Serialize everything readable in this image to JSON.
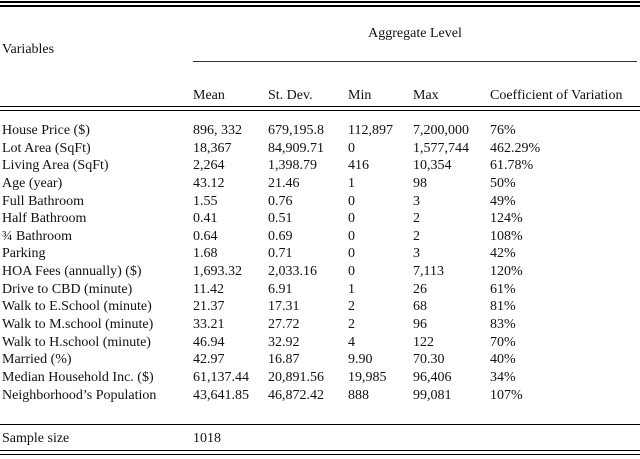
{
  "table": {
    "variables_header": "Variables",
    "group_header": "Aggregate Level",
    "columns": {
      "mean": "Mean",
      "std": "St. Dev.",
      "min": "Min",
      "max": "Max",
      "cov": "Coefficient of Variation"
    },
    "rows": [
      {
        "label": "House Price ($)",
        "mean": "896, 332",
        "std": "679,195.8",
        "min": "112,897",
        "max": "7,200,000",
        "cov": "76%"
      },
      {
        "label": "Lot Area (SqFt)",
        "mean": "18,367",
        "std": "84,909.71",
        "min": "0",
        "max": "1,577,744",
        "cov": "462.29%"
      },
      {
        "label": "Living Area (SqFt)",
        "mean": "2,264",
        "std": "1,398.79",
        "min": "416",
        "max": "10,354",
        "cov": "61.78%"
      },
      {
        "label": "Age (year)",
        "mean": "43.12",
        "std": "21.46",
        "min": "1",
        "max": "98",
        "cov": "50%"
      },
      {
        "label": "Full Bathroom",
        "mean": "1.55",
        "std": "0.76",
        "min": "0",
        "max": "3",
        "cov": "49%"
      },
      {
        "label": "Half Bathroom",
        "mean": "0.41",
        "std": "0.51",
        "min": "0",
        "max": "2",
        "cov": "124%"
      },
      {
        "label": "¾ Bathroom",
        "mean": "0.64",
        "std": "0.69",
        "min": "0",
        "max": "2",
        "cov": "108%"
      },
      {
        "label": "Parking",
        "mean": "1.68",
        "std": "0.71",
        "min": "0",
        "max": "3",
        "cov": "42%"
      },
      {
        "label": "HOA Fees (annually) ($)",
        "mean": "1,693.32",
        "std": "2,033.16",
        "min": "0",
        "max": "7,113",
        "cov": "120%"
      },
      {
        "label": "Drive to CBD (minute)",
        "mean": "11.42",
        "std": "6.91",
        "min": "1",
        "max": "26",
        "cov": "61%"
      },
      {
        "label": "Walk to E.School (minute)",
        "mean": "21.37",
        "std": "17.31",
        "min": "2",
        "max": "68",
        "cov": "81%"
      },
      {
        "label": "Walk to M.school (minute)",
        "mean": "33.21",
        "std": "27.72",
        "min": "2",
        "max": "96",
        "cov": "83%"
      },
      {
        "label": "Walk to H.school (minute)",
        "mean": "46.94",
        "std": "32.92",
        "min": "4",
        "max": "122",
        "cov": "70%"
      },
      {
        "label": "Married (%)",
        "mean": "42.97",
        "std": "16.87",
        "min": "9.90",
        "max": "70.30",
        "cov": "40%"
      },
      {
        "label": "Median Household Inc. ($)",
        "mean": "61,137.44",
        "std": "20,891.56",
        "min": "19,985",
        "max": "96,406",
        "cov": "34%"
      },
      {
        "label": "Neighborhood’s Population",
        "mean": "43,641.85",
        "std": "46,872.42",
        "min": "888",
        "max": "99,081",
        "cov": "107%"
      }
    ],
    "footer": {
      "label": "Sample size",
      "value": "1018"
    }
  }
}
